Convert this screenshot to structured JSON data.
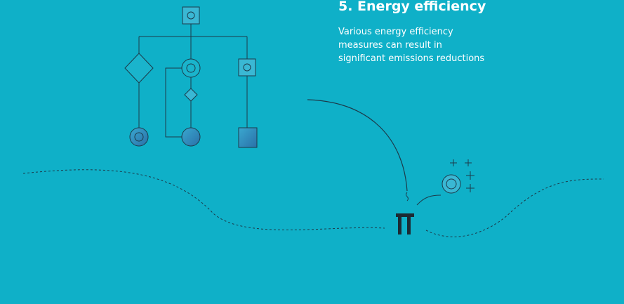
{
  "heading": {
    "title": "5. Energy efficiency",
    "body": [
      "Various energy efficiency",
      "measures can result in",
      "significant emissions reductions"
    ]
  }
}
